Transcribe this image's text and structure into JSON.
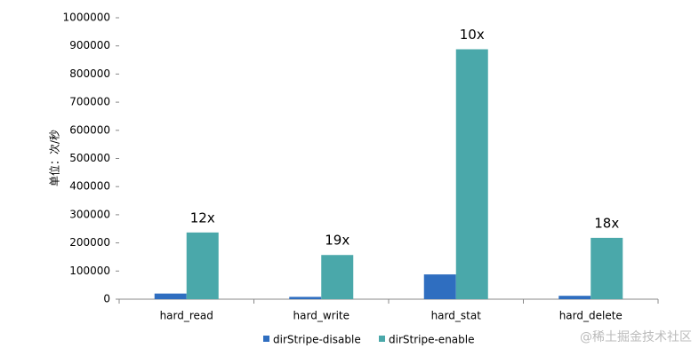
{
  "chart_data": {
    "type": "bar",
    "y_label": "单位：次/秒",
    "categories": [
      "hard_read",
      "hard_write",
      "hard_stat",
      "hard_delete"
    ],
    "series": [
      {
        "name": "dirStripe-disable",
        "color": "#2f6ec0",
        "values": [
          20000,
          8200,
          88000,
          12000
        ]
      },
      {
        "name": "dirStripe-enable",
        "color": "#4aa8aa",
        "values": [
          237000,
          157000,
          888000,
          218000
        ]
      }
    ],
    "annotations": [
      "12x",
      "19x",
      "10x",
      "18x"
    ],
    "ylim": [
      0,
      1000000
    ],
    "yticks": [
      0,
      100000,
      200000,
      300000,
      400000,
      500000,
      600000,
      700000,
      800000,
      900000,
      1000000
    ],
    "grid": false,
    "legend": "bottom"
  },
  "watermark": "@稀土掘金技术社区"
}
